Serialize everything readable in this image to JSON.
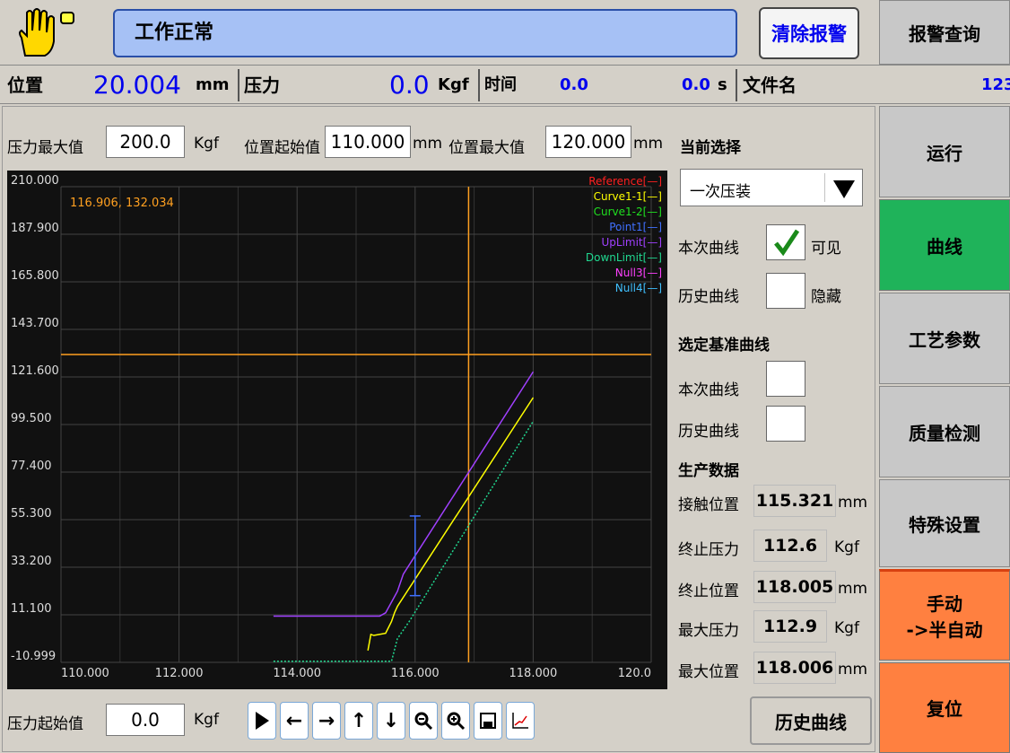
{
  "status_bar": {
    "status_text": "工作正常",
    "clear_alarm_label": "清除报警",
    "alarm_query_label": "报警查询"
  },
  "info_row": {
    "position_label": "位置",
    "position_value": "20.004",
    "position_unit": "mm",
    "pressure_label": "压力",
    "pressure_value": "0.0",
    "pressure_unit": "Kgf",
    "time_label": "时间",
    "time_value_1": "0.0",
    "time_value_2": "0.0",
    "time_unit": "s",
    "filename_label": "文件名",
    "filename_value": "123"
  },
  "params": {
    "pressure_max_label": "压力最大值",
    "pressure_max_value": "200.0",
    "pressure_max_unit": "Kgf",
    "pos_start_label": "位置起始值",
    "pos_start_value": "110.000",
    "pos_start_unit": "mm",
    "pos_max_label": "位置最大值",
    "pos_max_value": "120.000",
    "pos_max_unit": "mm",
    "pressure_start_label": "压力起始值",
    "pressure_start_value": "0.0",
    "pressure_start_unit": "Kgf"
  },
  "right_panel": {
    "current_select_label": "当前选择",
    "dropdown_value": "一次压装",
    "this_curve_label": "本次曲线",
    "visible_label": "可见",
    "history_curve_label": "历史曲线",
    "hidden_label": "隐藏",
    "select_ref_label": "选定基准曲线",
    "ref_this_curve_label": "本次曲线",
    "ref_history_curve_label": "历史曲线",
    "production_data_label": "生产数据",
    "contact_pos_label": "接触位置",
    "contact_pos_value": "115.321",
    "contact_pos_unit": "mm",
    "end_pressure_label": "终止压力",
    "end_pressure_value": "112.6",
    "end_pressure_unit": "Kgf",
    "end_pos_label": "终止位置",
    "end_pos_value": "118.005",
    "end_pos_unit": "mm",
    "max_pressure_label": "最大压力",
    "max_pressure_value": "112.9",
    "max_pressure_unit": "Kgf",
    "max_pos_label": "最大位置",
    "max_pos_value": "118.006",
    "max_pos_unit": "mm",
    "history_curve_button": "历史曲线"
  },
  "sidebar": {
    "run": "运行",
    "curve": "曲线",
    "process_params": "工艺参数",
    "quality_check": "质量检测",
    "special_settings": "特殊设置",
    "manual_semi_auto_1": "手动",
    "manual_semi_auto_2": "->半自动",
    "reset": "复位"
  },
  "colors": {
    "active_green": "#1fb35a",
    "orange": "#ff8040",
    "status_blue": "#a6c1f5",
    "chart_bg": "#111111"
  },
  "toolbar_icons": [
    "play-icon",
    "arrow-left-icon",
    "arrow-right-icon",
    "arrow-up-icon",
    "arrow-down-icon",
    "zoom-out-icon",
    "zoom-in-icon",
    "save-icon",
    "chart-icon"
  ],
  "chart_data": {
    "type": "line",
    "xlim": [
      110.0,
      120.0
    ],
    "ylim": [
      -10.999,
      210.0
    ],
    "x_ticks": [
      "110.000",
      "112.000",
      "114.000",
      "116.000",
      "118.000",
      "120.0"
    ],
    "y_ticks": [
      "210.000",
      "187.900",
      "165.800",
      "143.700",
      "121.600",
      "99.500",
      "77.400",
      "55.300",
      "33.200",
      "11.100",
      "-10.999"
    ],
    "cursor_readout": "116.906, 132.034",
    "cursor": {
      "x": 116.906,
      "y": 132.034
    },
    "legend": [
      {
        "name": "Reference[—]",
        "color": "#ff2020"
      },
      {
        "name": "Curve1-1[—]",
        "color": "#ffff00"
      },
      {
        "name": "Curve1-2[—]",
        "color": "#20e020"
      },
      {
        "name": "Point1[—]",
        "color": "#4070ff"
      },
      {
        "name": "UpLimit[—]",
        "color": "#a040ff"
      },
      {
        "name": "DownLimit[—]",
        "color": "#20d890"
      },
      {
        "name": "Null3[—]",
        "color": "#ff40ff"
      },
      {
        "name": "Null4[—]",
        "color": "#40c0ff"
      }
    ],
    "series": [
      {
        "name": "Curve1-1[—]",
        "color": "#ffff00",
        "x": [
          115.2,
          115.25,
          115.3,
          115.5,
          115.6,
          115.65,
          115.7,
          118.0
        ],
        "y": [
          -5.5,
          2,
          1.5,
          2.5,
          8,
          12,
          15,
          112
        ]
      },
      {
        "name": "UpLimit[—]",
        "color": "#a040ff",
        "x": [
          113.6,
          115.4,
          115.5,
          115.7,
          115.8,
          118.0
        ],
        "y": [
          10.5,
          10.5,
          12,
          22,
          30,
          124
        ]
      },
      {
        "name": "DownLimit[—]",
        "color": "#20d890",
        "x": [
          113.6,
          115.6,
          115.7,
          115.9,
          118.0
        ],
        "y": [
          -10.5,
          -10.5,
          0,
          8,
          101
        ]
      },
      {
        "name": "Point1[—]",
        "color": "#4070ff",
        "x": [
          116.0,
          116.0
        ],
        "y": [
          20,
          57
        ]
      }
    ]
  }
}
